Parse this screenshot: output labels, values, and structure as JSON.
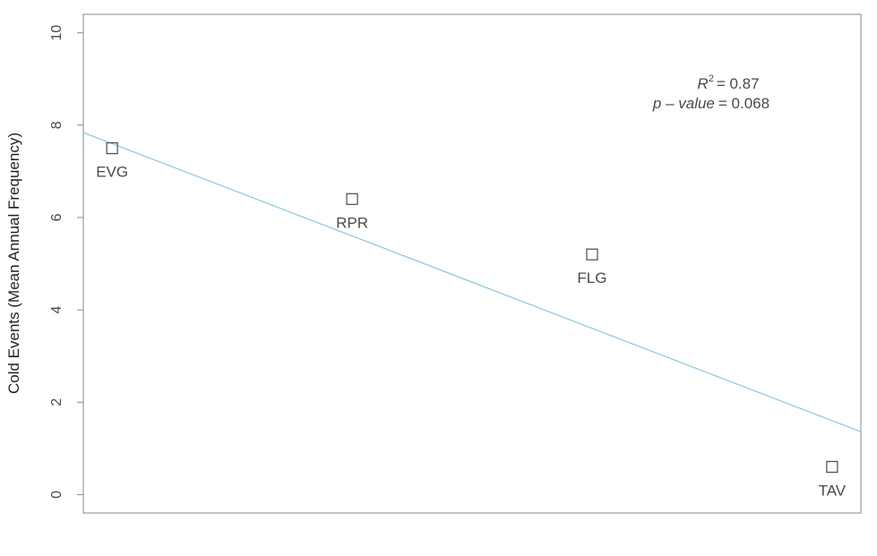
{
  "chart_data": {
    "type": "scatter",
    "title": "",
    "xlabel": "",
    "ylabel": "Cold Events (Mean Annual Frequency)",
    "ylim": [
      -0.4,
      10.4
    ],
    "yticks": [
      0,
      2,
      4,
      6,
      8,
      10
    ],
    "grid": false,
    "points": [
      {
        "label": "EVG",
        "x": 1,
        "y": 7.5
      },
      {
        "label": "RPR",
        "x": 2,
        "y": 6.4
      },
      {
        "label": "FLG",
        "x": 3,
        "y": 5.2
      },
      {
        "label": "TAV",
        "x": 4,
        "y": 0.6
      }
    ],
    "xlim": [
      0.88,
      4.12
    ],
    "fit_line": {
      "intercept": 9.6,
      "slope": -2.0,
      "color": "#87c6df"
    },
    "annotation": {
      "r2_symbol": "R",
      "r2_superscript": "2",
      "r2_value": "= 0.87",
      "pvalue_label": "p – value",
      "pvalue_value": "= 0.068"
    },
    "colors": {
      "points": "#4a4a4a",
      "axis": "#888888",
      "fit": "#87c6df"
    }
  }
}
